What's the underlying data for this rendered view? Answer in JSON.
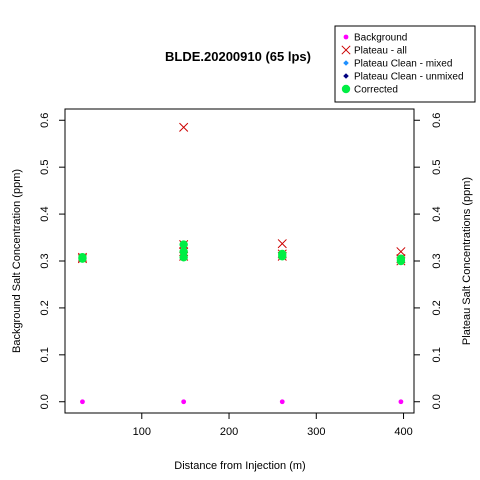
{
  "chart_data": {
    "type": "scatter",
    "title": "BLDE.20200910 (65 lps)",
    "xlabel": "Distance from Injection (m)",
    "ylabel": "Background Salt Concentration (ppm)",
    "y2label": "Plateau Salt Concentrations (ppm)",
    "xlim": [
      12,
      412
    ],
    "ylim": [
      -0.024,
      0.624
    ],
    "x_ticks": [
      100,
      200,
      300,
      400
    ],
    "y_ticks": [
      0.0,
      0.1,
      0.2,
      0.3,
      0.4,
      0.5,
      0.6
    ],
    "y_tick_labels": [
      "0.0",
      "0.1",
      "0.2",
      "0.3",
      "0.4",
      "0.5",
      "0.6"
    ],
    "legend_position": "top-right",
    "series": [
      {
        "name": "Background",
        "marker": "dot",
        "color": "#ff00ff",
        "points": [
          [
            32,
            0.0
          ],
          [
            148,
            0.0
          ],
          [
            261,
            0.0
          ],
          [
            397,
            0.0
          ]
        ]
      },
      {
        "name": "Plateau - all",
        "marker": "x",
        "color": "#cc0000",
        "points": [
          [
            32,
            0.305
          ],
          [
            32,
            0.308
          ],
          [
            148,
            0.585
          ],
          [
            148,
            0.335
          ],
          [
            148,
            0.32
          ],
          [
            148,
            0.31
          ],
          [
            261,
            0.337
          ],
          [
            261,
            0.315
          ],
          [
            261,
            0.31
          ],
          [
            397,
            0.32
          ],
          [
            397,
            0.305
          ],
          [
            397,
            0.3
          ]
        ]
      },
      {
        "name": "Plateau Clean - mixed",
        "marker": "diamond",
        "color": "#1e90ff",
        "points": [
          [
            32,
            0.305
          ],
          [
            148,
            0.335
          ],
          [
            148,
            0.32
          ],
          [
            148,
            0.31
          ],
          [
            261,
            0.315
          ],
          [
            261,
            0.31
          ],
          [
            397,
            0.305
          ],
          [
            397,
            0.3
          ]
        ]
      },
      {
        "name": "Plateau Clean - unmixed",
        "marker": "diamond",
        "color": "#000080",
        "points": [
          [
            32,
            0.305
          ],
          [
            148,
            0.32
          ],
          [
            261,
            0.312
          ],
          [
            397,
            0.302
          ]
        ]
      },
      {
        "name": "Corrected",
        "marker": "dot",
        "color": "#00ee44",
        "points": [
          [
            32,
            0.305
          ],
          [
            32,
            0.308
          ],
          [
            148,
            0.335
          ],
          [
            148,
            0.32
          ],
          [
            148,
            0.308
          ],
          [
            261,
            0.315
          ],
          [
            261,
            0.31
          ],
          [
            397,
            0.305
          ],
          [
            397,
            0.3
          ]
        ]
      }
    ]
  }
}
